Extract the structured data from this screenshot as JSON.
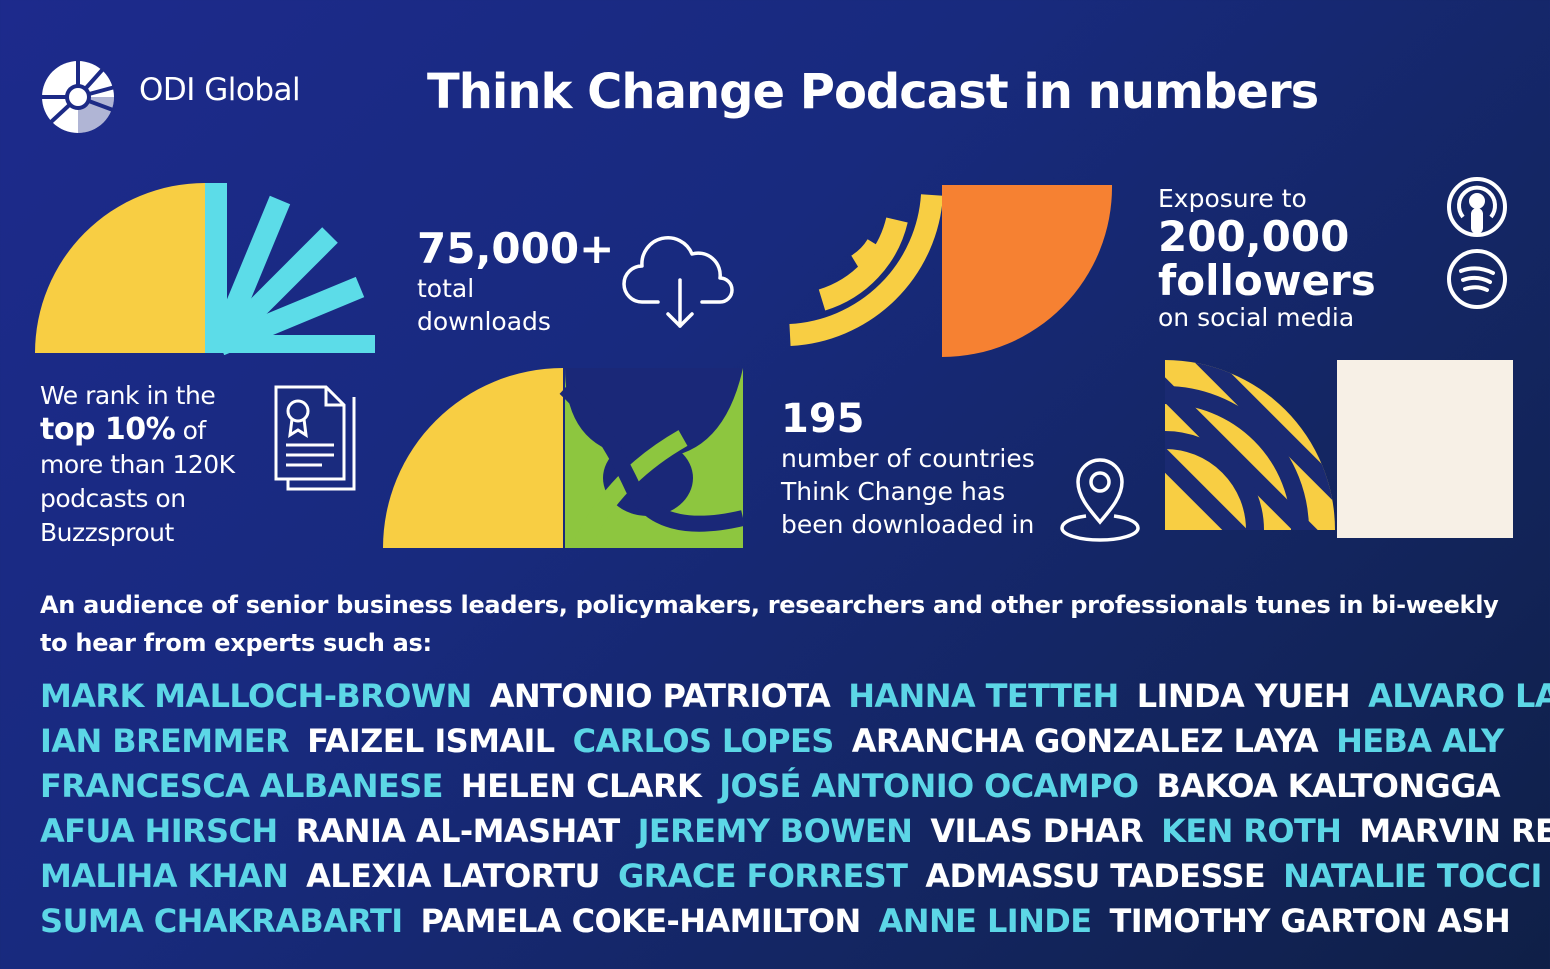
{
  "brand": {
    "name": "ODI Global"
  },
  "title": "Think Change Podcast in numbers",
  "colors": {
    "yellow": "#f8ce43",
    "cyan": "#5cdce8",
    "orange": "#f68132",
    "green": "#8dc63f",
    "cream": "#f7f0e6",
    "highlight": "#5cd6e6"
  },
  "stats": {
    "rank": {
      "line1": "We rank in the",
      "bold": "top 10%",
      "after": " of",
      "line3": "more than 120K",
      "line4": "podcasts on",
      "line5": "Buzzsprout"
    },
    "downloads": {
      "number": "75,000+",
      "line1": "total",
      "line2": "downloads"
    },
    "countries": {
      "number": "195",
      "line1": "number of countries",
      "line2": "Think Change has",
      "line3": "been downloaded in"
    },
    "followers": {
      "prefix": "Exposure to",
      "number": "200,000",
      "word": "followers",
      "suffix": "on social media"
    }
  },
  "icons": {
    "certificate": "certificate-document-icon",
    "cloud": "cloud-download-icon",
    "pin": "location-pin-icon",
    "podcast": "apple-podcasts-icon",
    "spotify": "spotify-icon"
  },
  "intro": "An audience of senior business leaders, policymakers, researchers and other professionals tunes in bi-weekly to hear from experts such as:",
  "experts": [
    [
      "MARK MALLOCH-BROWN",
      "ANTONIO PATRIOTA",
      "HANNA TETTEH",
      "LINDA YUEH",
      "ALVARO LARIO"
    ],
    [
      "IAN BREMMER",
      "FAIZEL ISMAIL",
      "CARLOS LOPES",
      "ARANCHA GONZALEZ LAYA",
      "HEBA ALY"
    ],
    [
      "FRANCESCA ALBANESE",
      "HELEN CLARK",
      "JOSÉ ANTONIO OCAMPO",
      "BAKOA KALTONGGA"
    ],
    [
      "AFUA HIRSCH",
      "RANIA AL-MASHAT",
      "JEREMY BOWEN",
      "VILAS DHAR",
      "KEN ROTH",
      "MARVIN REES"
    ],
    [
      "MALIHA KHAN",
      "ALEXIA LATORTU",
      "GRACE FORREST",
      "ADMASSU TADESSE",
      "NATALIE TOCCI"
    ],
    [
      "SUMA CHAKRABARTI",
      "PAMELA COKE-HAMILTON",
      "ANNE LINDE",
      "TIMOTHY GARTON ASH"
    ]
  ]
}
